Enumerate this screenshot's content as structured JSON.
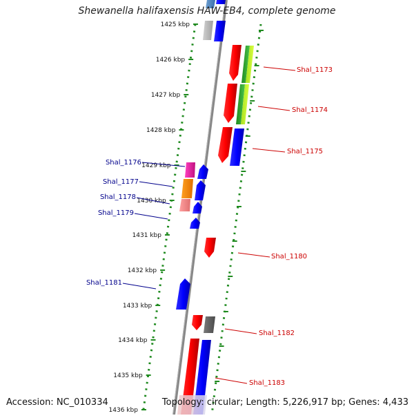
{
  "title": "Shewanella halifaxensis HAW-EB4, complete genome",
  "footer": {
    "accession": "Accession: NC_010334",
    "summary": "Topology: circular; Length: 5,226,917 bp; Genes: 4,433"
  },
  "ticks": [
    "1425 kbp",
    "1426 kbp",
    "1427 kbp",
    "1428 kbp",
    "1429 kbp",
    "1430 kbp",
    "1431 kbp",
    "1432 kbp",
    "1433 kbp",
    "1434 kbp",
    "1435 kbp",
    "1436 kbp"
  ],
  "labels": {
    "right": [
      "Shal_1173",
      "Shal_1174",
      "Shal_1175",
      "Shal_1180",
      "Shal_1182",
      "Shal_1183"
    ],
    "left": [
      "Shal_1176",
      "Shal_1177",
      "Shal_1178",
      "Shal_1179",
      "Shal_1181"
    ]
  },
  "colors": {
    "backbone": "#808080",
    "dots": "#1f8a1f",
    "forward": "#cc0000",
    "reverse": "#00008b",
    "red": "#ff0000",
    "blue": "#0000ff"
  }
}
